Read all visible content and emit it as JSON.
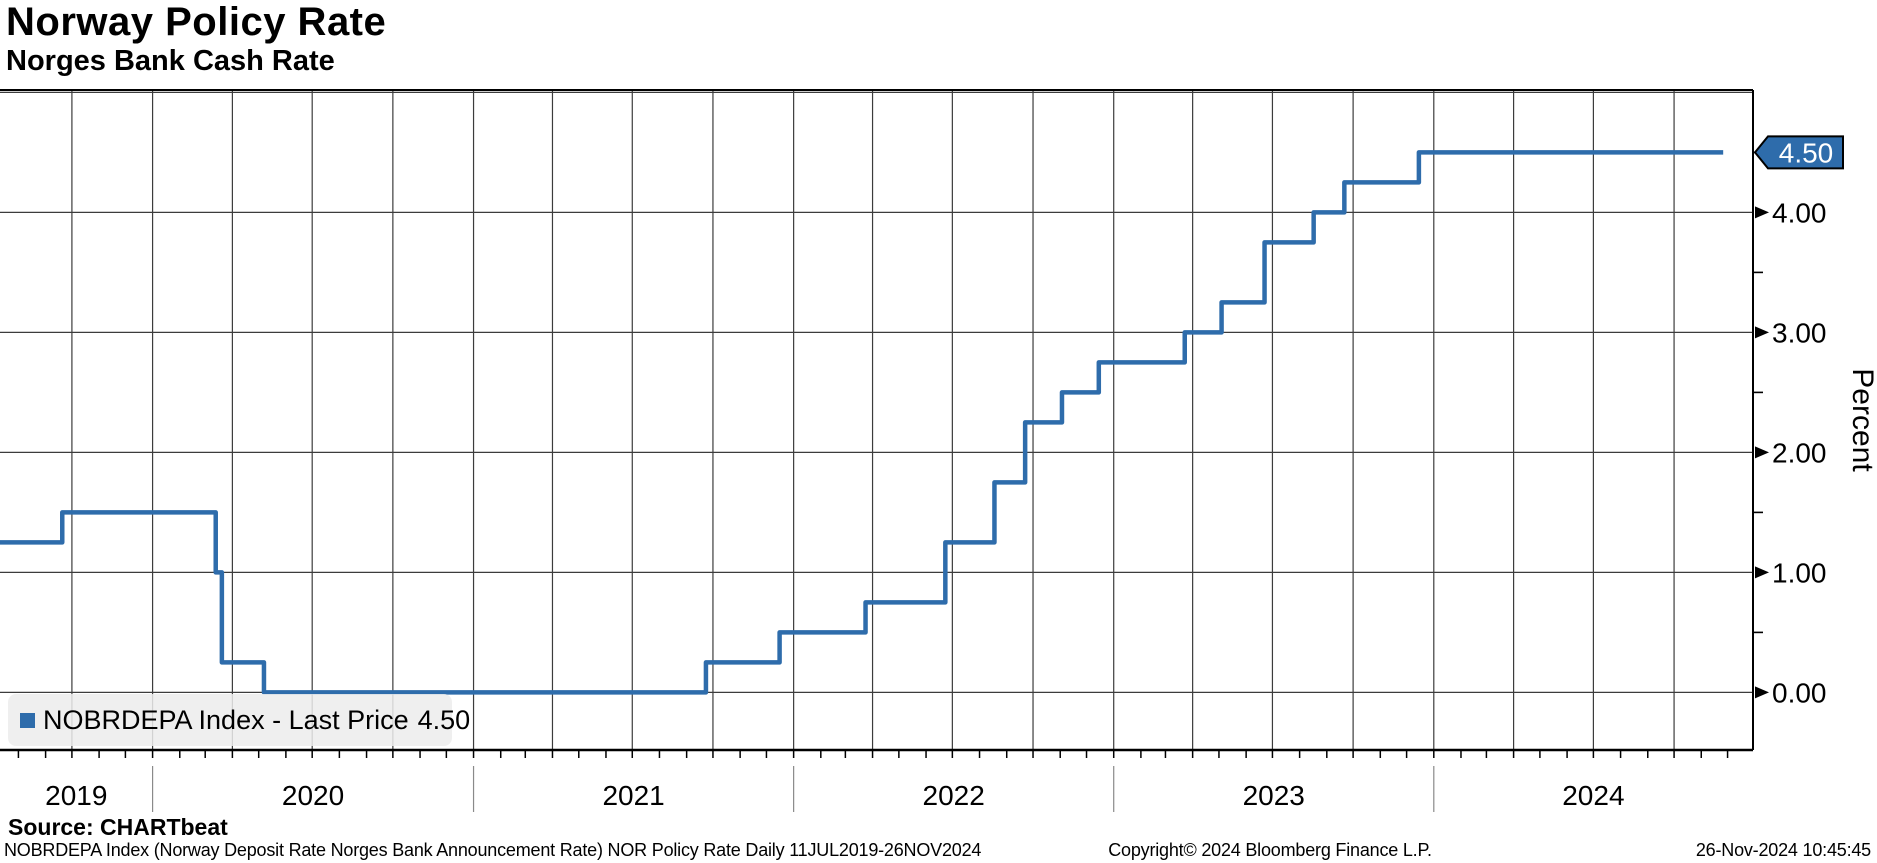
{
  "window": {
    "title": "Norway Policy Rate",
    "subtitle": "Norges Bank Cash Rate"
  },
  "legend": {
    "label": "NOBRDEPA Index - Last Price",
    "value": "4.50",
    "marker_color": "#2e6cab"
  },
  "source_line": "Source: CHARTbeat",
  "footer": {
    "left": "NOBRDEPA Index (Norway Deposit Rate Norges Bank Announcement Rate) NOR Policy Rate  Daily 11JUL2019-26NOV2024",
    "center": "Copyright© 2024 Bloomberg Finance L.P.",
    "right": "26-Nov-2024 10:45:45"
  },
  "chart_data": {
    "type": "line",
    "subtype": "step",
    "title": "Norway Policy Rate",
    "subtitle": "Norges Bank Cash Rate",
    "ylabel": "Percent",
    "legend_position": "bottom-left",
    "grid": "on",
    "series": [
      {
        "name": "NOBRDEPA Index",
        "color": "#2e6cab",
        "last_price": "4.50",
        "points": [
          [
            "2019-07-11",
            1.25
          ],
          [
            "2019-09-20",
            1.5
          ],
          [
            "2020-03-13",
            1.0
          ],
          [
            "2020-03-20",
            0.25
          ],
          [
            "2020-05-07",
            0.0
          ],
          [
            "2021-09-23",
            0.25
          ],
          [
            "2021-12-16",
            0.5
          ],
          [
            "2022-03-24",
            0.75
          ],
          [
            "2022-06-23",
            1.25
          ],
          [
            "2022-08-18",
            1.75
          ],
          [
            "2022-09-22",
            2.25
          ],
          [
            "2022-11-03",
            2.5
          ],
          [
            "2022-12-15",
            2.75
          ],
          [
            "2023-03-23",
            3.0
          ],
          [
            "2023-05-04",
            3.25
          ],
          [
            "2023-06-22",
            3.75
          ],
          [
            "2023-08-17",
            4.0
          ],
          [
            "2023-09-21",
            4.25
          ],
          [
            "2023-12-15",
            4.5
          ],
          [
            "2024-11-26",
            4.5
          ]
        ]
      }
    ],
    "y_axis": {
      "side": "right",
      "min": -0.48,
      "max": 5.02,
      "major_ticks": [
        0,
        1,
        2,
        3,
        4
      ],
      "major_tick_labels": [
        "0.00",
        "1.00",
        "2.00",
        "3.00",
        "4.00"
      ],
      "minor_ticks": [
        0.5,
        1.5,
        2.5,
        3.5,
        4.5
      ],
      "gridline_values": [
        0,
        1,
        2,
        3,
        4,
        5
      ]
    },
    "x_axis": {
      "start": "2019-07-11",
      "end": "2024-11-26",
      "axis_end": "2024-12-30",
      "year_labels": [
        "2019",
        "2020",
        "2021",
        "2022",
        "2023",
        "2024"
      ],
      "gridlines": "quarterly",
      "minor_ticks": "monthly"
    },
    "colors": {
      "grid": "#3c3c3c",
      "axis": "#000000",
      "badge_bg": "#2e6cab",
      "badge_text": "#ffffff"
    }
  }
}
